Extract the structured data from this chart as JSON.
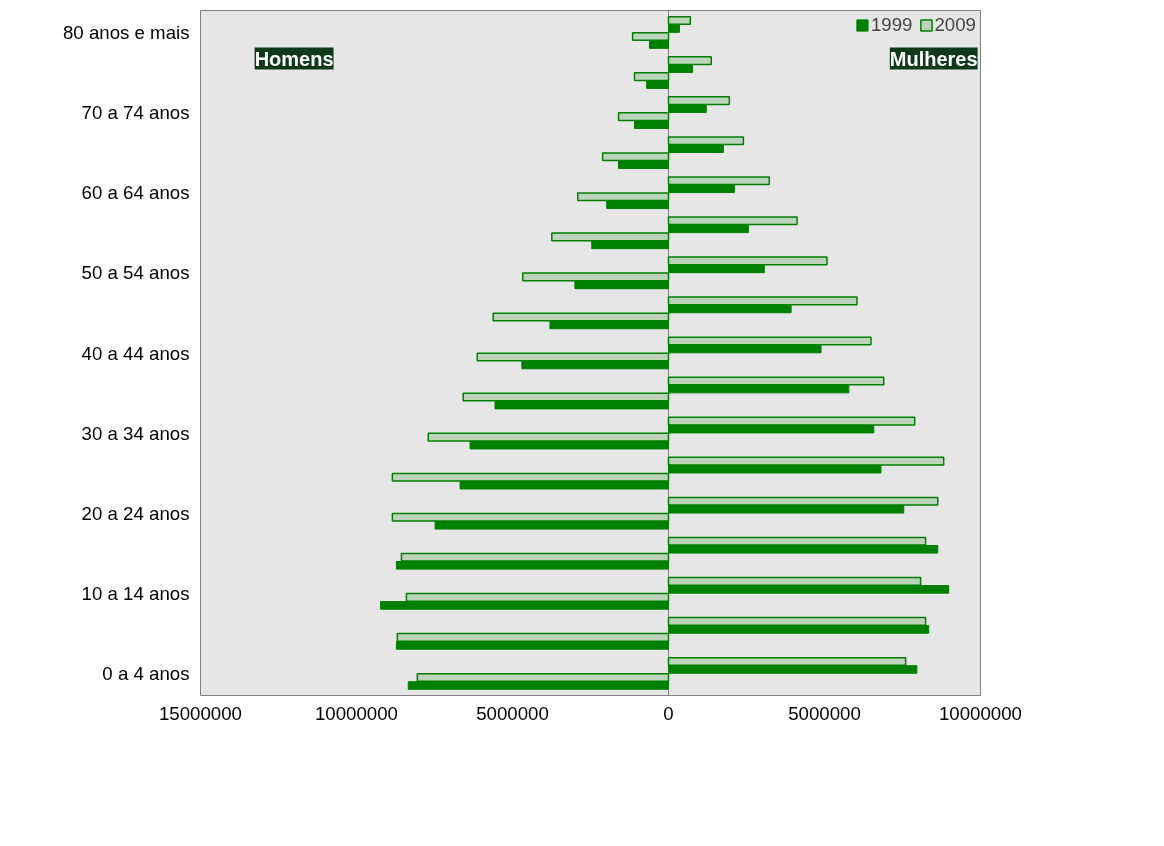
{
  "chart_data": {
    "type": "bar",
    "orientation": "horizontal",
    "categories": [
      "80 anos e mais",
      null,
      "70 a 74 anos",
      null,
      "60 a 64 anos",
      null,
      "50 a 54 anos",
      null,
      "40 a 44 anos",
      null,
      "30 a 34 anos",
      null,
      "20 a 24 anos",
      null,
      "10 a 14 anos",
      null,
      "0 a 4 anos"
    ],
    "series": [
      {
        "color": "#008000",
        "values": [
          700000,
          1370000,
          1950000,
          2400000,
          3230000,
          4120000,
          5080000,
          6040000,
          6490000,
          6900000,
          7890000,
          8820000,
          8630000,
          8240000,
          8080000,
          8240000,
          7600000
        ]
      },
      {
        "color": "#008000",
        "values": [
          350000,
          770000,
          1210000,
          1760000,
          2110000,
          2560000,
          3070000,
          3930000,
          4890000,
          5780000,
          6580000,
          6810000,
          7540000,
          8630000,
          8980000,
          8340000,
          7960000
        ]
      },
      {
        "name": "2009",
        "color": "#008000",
        "values": [
          -1150000,
          -1090000,
          -1600000,
          -2110000,
          -2910000,
          -3740000,
          -4670000,
          -5620000,
          -6130000,
          -6580000,
          -7700000,
          -8850000,
          -8850000,
          -8560000,
          -8400000,
          -8690000,
          -8050000
        ]
      },
      {
        "name": "1999",
        "color": "#008000",
        "values": [
          -610000,
          -700000,
          -1090000,
          -1600000,
          -1980000,
          -2460000,
          -3000000,
          -3800000,
          -4700000,
          -5560000,
          -6360000,
          -6680000,
          -7480000,
          -8720000,
          -9230000,
          -8720000,
          -8340000
        ]
      }
    ],
    "ref_lines": [
      {
        "axis": "x",
        "value": 0,
        "color": "#808080"
      }
    ],
    "xlim": [
      -15000000,
      10000000
    ],
    "xticks": [
      {
        "value": -15000000,
        "label": "15000000"
      },
      {
        "value": -10000000,
        "label": "10000000"
      },
      {
        "value": -5000000,
        "label": "5000000"
      },
      0,
      5000000,
      10000000
    ],
    "annotations": [
      "Homens",
      "Mulheres"
    ],
    "legend": "top right",
    "grid": false
  }
}
